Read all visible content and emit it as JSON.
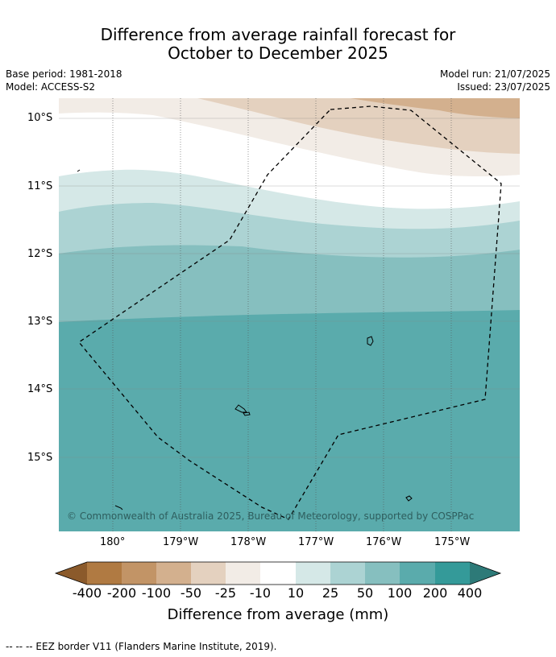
{
  "title": {
    "line1": "Difference from average rainfall forecast for",
    "line2": "October to December 2025"
  },
  "meta": {
    "base_period": "Base period: 1981-2018",
    "model": "Model: ACCESS-S2",
    "model_run": "Model run: 21/07/2025",
    "issued": "Issued: 23/07/2025"
  },
  "map": {
    "lat_labels": [
      "10°S",
      "11°S",
      "12°S",
      "13°S",
      "14°S",
      "15°S"
    ],
    "lon_labels": [
      "180°",
      "179°W",
      "178°W",
      "177°W",
      "176°W",
      "175°W"
    ],
    "copyright": "© Commonwealth of Australia 2025, Bureau of Meteorology, supported by COSPPac",
    "colors": {
      "land_line": "#000000",
      "eez_line": "#000000"
    }
  },
  "colorbar": {
    "title": "Difference from average (mm)",
    "tick_labels": [
      "-400",
      "-200",
      "-100",
      "-50",
      "-25",
      "-10",
      "10",
      "25",
      "50",
      "100",
      "200",
      "400"
    ],
    "colors": [
      "#8b5a2b",
      "#b07a42",
      "#c29466",
      "#d3b08e",
      "#e4d1bf",
      "#f2ece6",
      "#ffffff",
      "#d5e8e7",
      "#acd3d3",
      "#86bfbf",
      "#5aabac",
      "#349a99",
      "#2d7a78"
    ]
  },
  "footer": "--  --  -- EEZ border V11 (Flanders Marine Institute, 2019)."
}
